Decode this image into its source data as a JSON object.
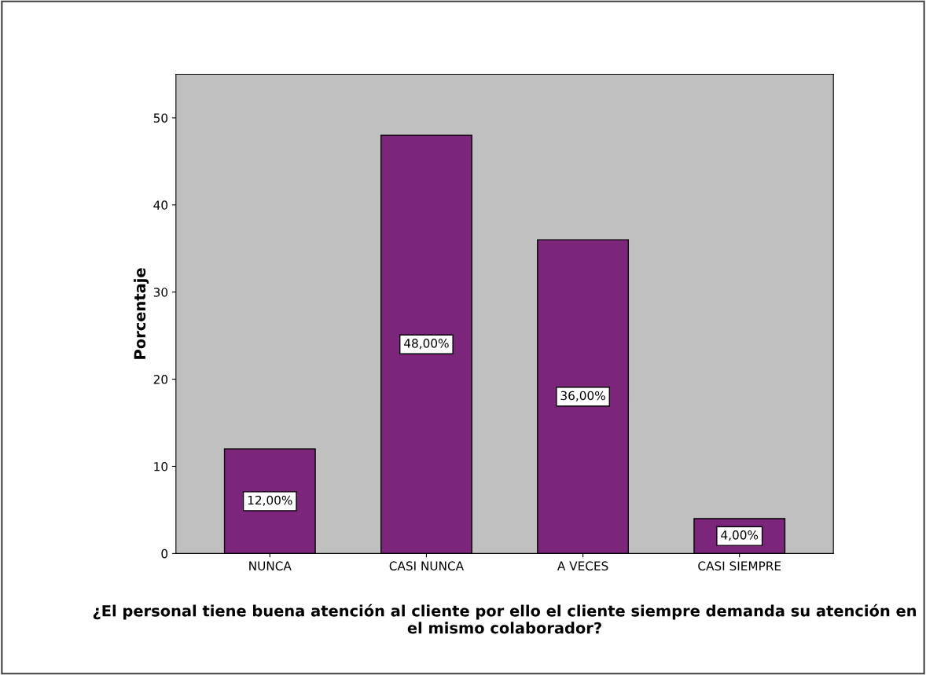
{
  "chart_data": {
    "type": "bar",
    "categories": [
      "NUNCA",
      "CASI NUNCA",
      "A VECES",
      "CASI SIEMPRE"
    ],
    "values": [
      12,
      48,
      36,
      4
    ],
    "value_labels": [
      "12,00%",
      "48,00%",
      "36,00%",
      "4,00%"
    ],
    "color": "#7b267b",
    "ylabel": "Porcentaje",
    "xlabel": "¿El personal tiene buena atención al cliente por ello el cliente siempre demanda su atención en el mismo colaborador?",
    "ylim": [
      0,
      55
    ],
    "yticks": [
      0,
      10,
      20,
      30,
      40,
      50
    ],
    "grid": false,
    "legend": false
  }
}
